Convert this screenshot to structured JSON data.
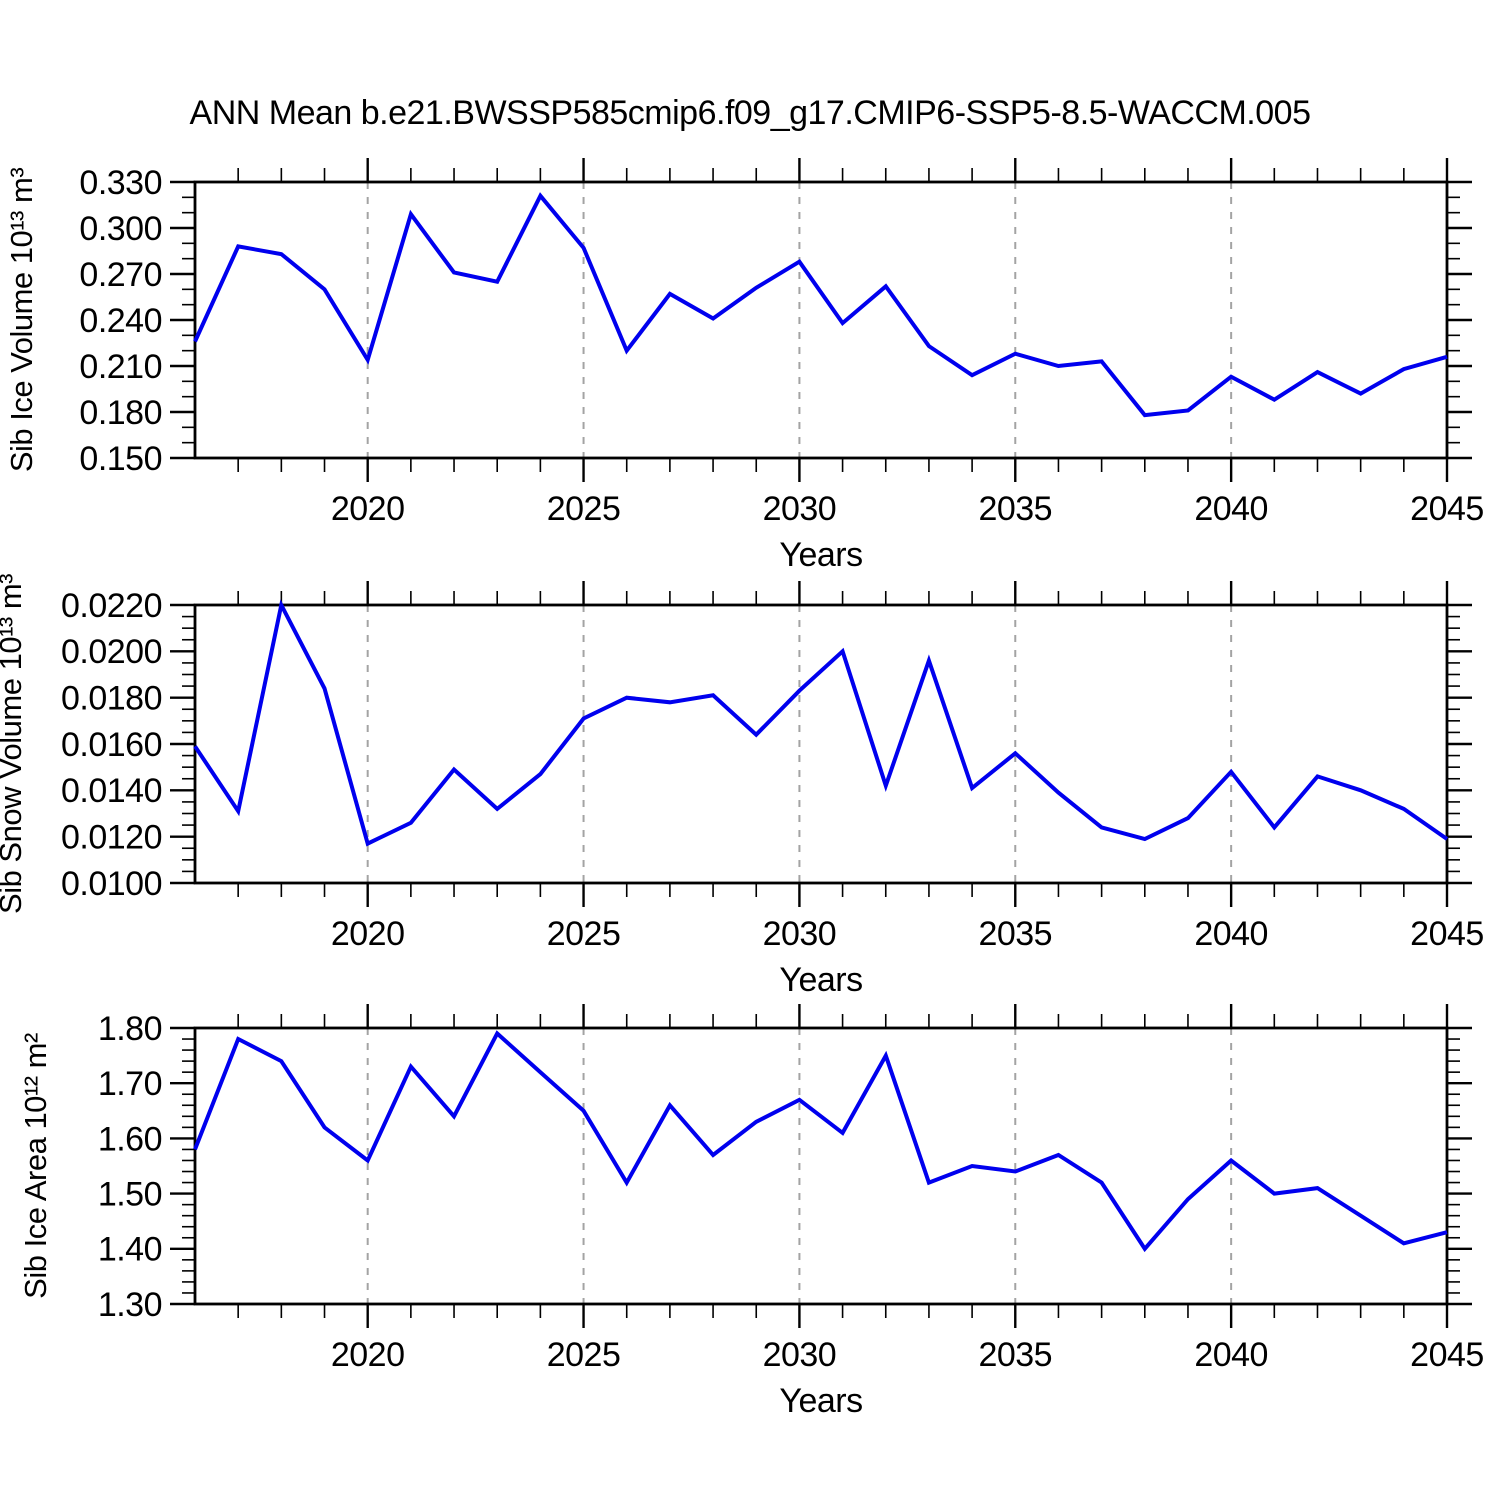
{
  "title": "ANN Mean b.e21.BWSSP585cmip6.f09_g17.CMIP6-SSP5-8.5-WACCM.005",
  "colors": {
    "line": "#0000ee",
    "axis": "#000000",
    "grid": "#a3a3a3",
    "text": "#000000",
    "background": "#ffffff"
  },
  "chart_data": [
    {
      "type": "line",
      "ylabel": "Sib Ice Volume 10¹³ m³",
      "xlabel": "Years",
      "x": [
        2016,
        2017,
        2018,
        2019,
        2020,
        2021,
        2022,
        2023,
        2024,
        2025,
        2026,
        2027,
        2028,
        2029,
        2030,
        2031,
        2032,
        2033,
        2034,
        2035,
        2036,
        2037,
        2038,
        2039,
        2040,
        2041,
        2042,
        2043,
        2044,
        2045
      ],
      "values": [
        0.226,
        0.288,
        0.283,
        0.26,
        0.214,
        0.309,
        0.271,
        0.265,
        0.321,
        0.287,
        0.22,
        0.257,
        0.241,
        0.261,
        0.278,
        0.238,
        0.262,
        0.223,
        0.204,
        0.218,
        0.21,
        0.213,
        0.178,
        0.181,
        0.203,
        0.188,
        0.206,
        0.192,
        0.208,
        0.216
      ],
      "xlim": [
        2016,
        2045
      ],
      "ylim": [
        0.15,
        0.33
      ],
      "xtick_values": [
        2020,
        2025,
        2030,
        2035,
        2040,
        2045
      ],
      "xtick_labels": [
        "2020",
        "2025",
        "2030",
        "2035",
        "2040",
        "2045"
      ],
      "x_minor_step": 1,
      "ytick_values": [
        0.15,
        0.18,
        0.21,
        0.24,
        0.27,
        0.3,
        0.33
      ],
      "ytick_labels": [
        "0.150",
        "0.180",
        "0.210",
        "0.240",
        "0.270",
        "0.300",
        "0.330"
      ],
      "y_minor_step": 0.01,
      "gridline_x": [
        2020,
        2025,
        2030,
        2035,
        2040
      ],
      "grid": "vertical-dashed",
      "legend": "none"
    },
    {
      "type": "line",
      "ylabel": "Sib Snow Volume 10¹³ m³",
      "xlabel": "Years",
      "x": [
        2016,
        2017,
        2018,
        2019,
        2020,
        2021,
        2022,
        2023,
        2024,
        2025,
        2026,
        2027,
        2028,
        2029,
        2030,
        2031,
        2032,
        2033,
        2034,
        2035,
        2036,
        2037,
        2038,
        2039,
        2040,
        2041,
        2042,
        2043,
        2044,
        2045
      ],
      "values": [
        0.0159,
        0.0131,
        0.022,
        0.0184,
        0.0117,
        0.0126,
        0.0149,
        0.0132,
        0.0147,
        0.0171,
        0.018,
        0.0178,
        0.0181,
        0.0164,
        0.0183,
        0.02,
        0.0142,
        0.0196,
        0.0141,
        0.0156,
        0.0139,
        0.0124,
        0.0119,
        0.0128,
        0.0148,
        0.0124,
        0.0146,
        0.014,
        0.0132,
        0.0119
      ],
      "xlim": [
        2016,
        2045
      ],
      "ylim": [
        0.01,
        0.022
      ],
      "xtick_values": [
        2020,
        2025,
        2030,
        2035,
        2040,
        2045
      ],
      "xtick_labels": [
        "2020",
        "2025",
        "2030",
        "2035",
        "2040",
        "2045"
      ],
      "x_minor_step": 1,
      "ytick_values": [
        0.01,
        0.012,
        0.014,
        0.016,
        0.018,
        0.02,
        0.022
      ],
      "ytick_labels": [
        "0.0100",
        "0.0120",
        "0.0140",
        "0.0160",
        "0.0180",
        "0.0200",
        "0.0220"
      ],
      "y_minor_step": 0.0005,
      "gridline_x": [
        2020,
        2025,
        2030,
        2035,
        2040
      ],
      "grid": "vertical-dashed",
      "legend": "none"
    },
    {
      "type": "line",
      "ylabel": "Sib Ice Area 10¹² m²",
      "xlabel": "Years",
      "x": [
        2016,
        2017,
        2018,
        2019,
        2020,
        2021,
        2022,
        2023,
        2024,
        2025,
        2026,
        2027,
        2028,
        2029,
        2030,
        2031,
        2032,
        2033,
        2034,
        2035,
        2036,
        2037,
        2038,
        2039,
        2040,
        2041,
        2042,
        2043,
        2044,
        2045
      ],
      "values": [
        1.58,
        1.78,
        1.74,
        1.62,
        1.56,
        1.73,
        1.64,
        1.79,
        1.72,
        1.65,
        1.52,
        1.66,
        1.57,
        1.63,
        1.67,
        1.61,
        1.75,
        1.52,
        1.55,
        1.54,
        1.57,
        1.52,
        1.4,
        1.49,
        1.56,
        1.5,
        1.51,
        1.46,
        1.41,
        1.43
      ],
      "xlim": [
        2016,
        2045
      ],
      "ylim": [
        1.3,
        1.8
      ],
      "xtick_values": [
        2020,
        2025,
        2030,
        2035,
        2040,
        2045
      ],
      "xtick_labels": [
        "2020",
        "2025",
        "2030",
        "2035",
        "2040",
        "2045"
      ],
      "x_minor_step": 1,
      "ytick_values": [
        1.3,
        1.4,
        1.5,
        1.6,
        1.7,
        1.8
      ],
      "ytick_labels": [
        "1.30",
        "1.40",
        "1.50",
        "1.60",
        "1.70",
        "1.80"
      ],
      "y_minor_step": 0.02,
      "gridline_x": [
        2020,
        2025,
        2030,
        2035,
        2040
      ],
      "grid": "vertical-dashed",
      "legend": "none"
    }
  ]
}
